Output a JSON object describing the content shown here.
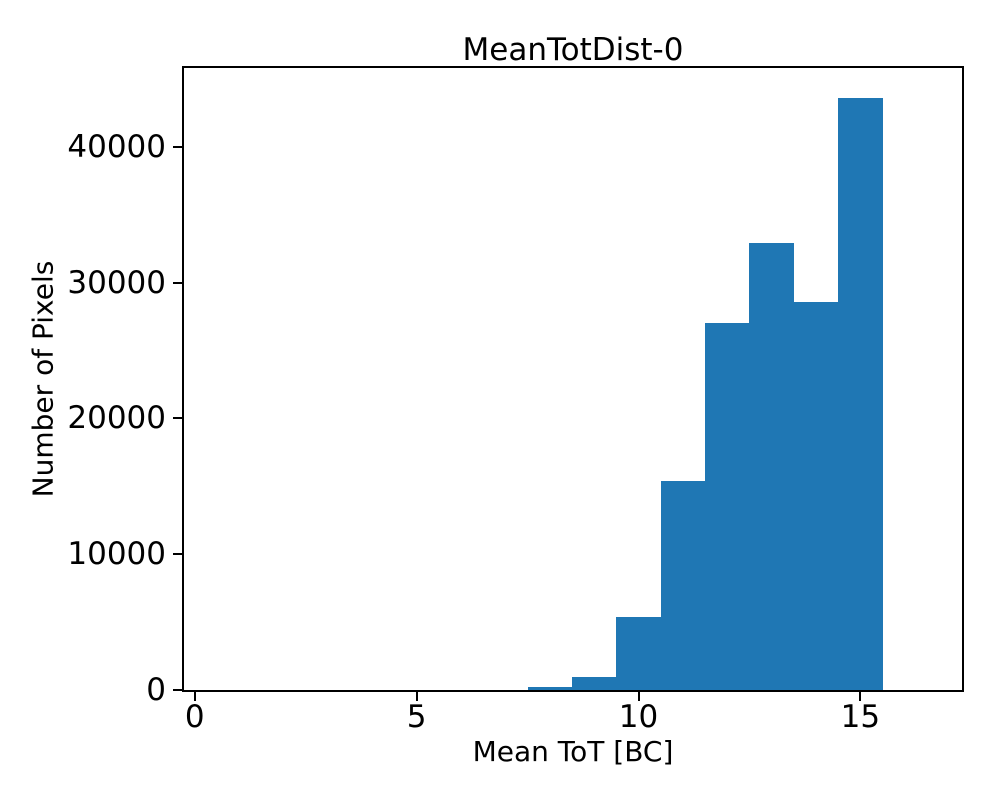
{
  "chart_data": {
    "type": "bar",
    "subtype": "histogram",
    "title": "MeanTotDist-0",
    "xlabel": "Mean ToT [BC]",
    "ylabel": "Number of Pixels",
    "bar_color": "#1f77b4",
    "axis_color": "#000000",
    "background_color": "#ffffff",
    "grid": false,
    "legend_position": "none",
    "bin_edges": [
      7.5,
      8.5,
      9.5,
      10.5,
      11.5,
      12.5,
      13.5,
      14.5,
      15.5
    ],
    "bin_centers": [
      8,
      9,
      10,
      11,
      12,
      13,
      14,
      15
    ],
    "counts": [
      200,
      950,
      5400,
      15400,
      27000,
      32900,
      28600,
      43600
    ],
    "x_ticks": [
      0,
      5,
      10,
      15
    ],
    "y_ticks": [
      0,
      10000,
      20000,
      30000,
      40000
    ],
    "xlim": [
      -0.24,
      17.29
    ],
    "ylim": [
      0,
      45800
    ]
  }
}
